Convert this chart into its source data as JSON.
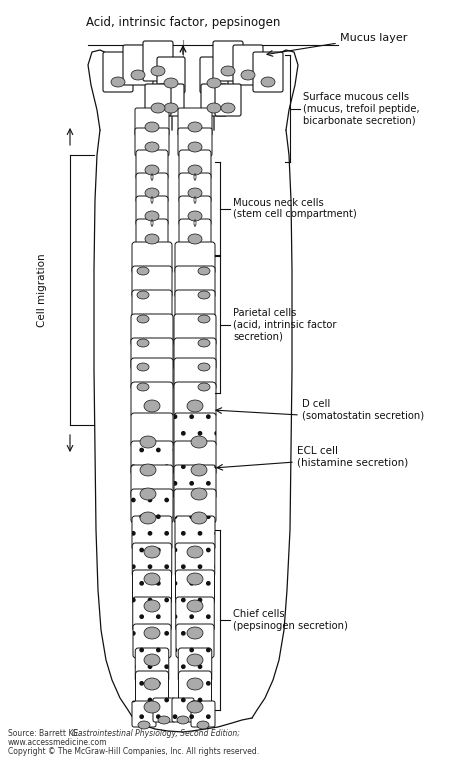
{
  "bg_color": "#ffffff",
  "gray_fill": "#aaaaaa",
  "cell_edge": "#111111",
  "line_color": "#111111",
  "labels": {
    "top_arrow": "Acid, intrinsic factor, pepsinogen",
    "mucus_layer": "Mucus layer",
    "surface_mucous": "Surface mucous cells\n(mucus, trefoil peptide,\nbicarbonate secretion)",
    "cell_migration": "Cell migration",
    "mucous_neck": "Mucous neck cells\n(stem cell compartment)",
    "parietal": "Parietal cells\n(acid, intrinsic factor\nsecretion)",
    "d_cell": "D cell\n(somatostatin secretion)",
    "ecl_cell": "ECL cell\n(histamine secretion)",
    "chief_cells": "Chief cells\n(pepsinogen secretion)",
    "source_line1": "Source: Barrett KE: ",
    "source_italic": "Gastrointestinal Physiology, Second Edition;",
    "source_line2": "www.accessmedicine.com",
    "source_line3": "Copyright © The McGraw-Hill Companies, Inc. All rights reserved."
  }
}
